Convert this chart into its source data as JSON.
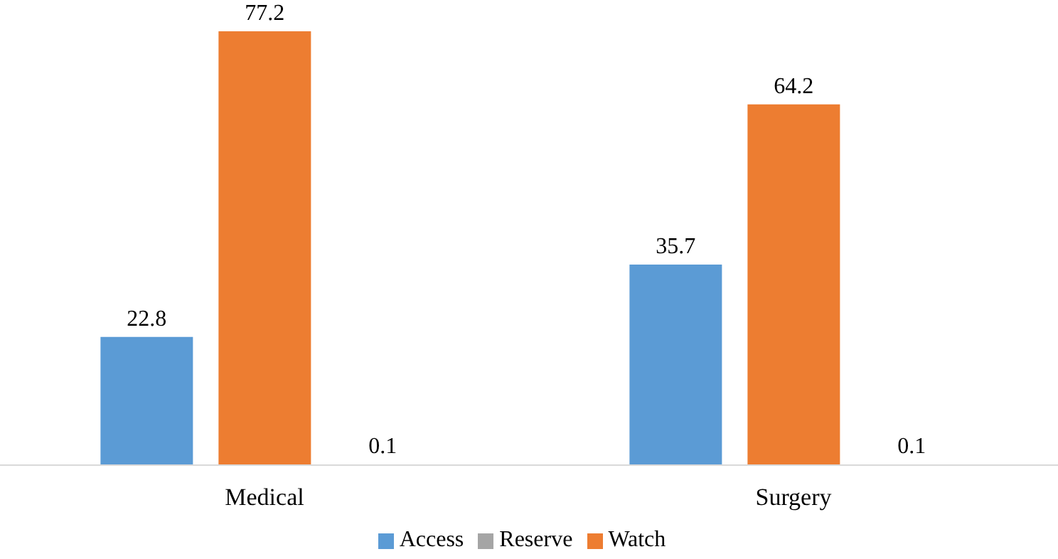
{
  "chart_data": {
    "type": "bar",
    "categories": [
      "Medical",
      "Surgery"
    ],
    "series": [
      {
        "name": "Access",
        "color": "#5b9bd5",
        "values": [
          22.8,
          35.7
        ]
      },
      {
        "name": "Watch",
        "color": "#ed7d31",
        "values": [
          77.2,
          64.2
        ]
      },
      {
        "name": "Reserve",
        "color": "#a5a5a5",
        "values": [
          0.1,
          0.1
        ]
      }
    ],
    "data_labels": true,
    "legend": "bottom",
    "grid": false
  }
}
